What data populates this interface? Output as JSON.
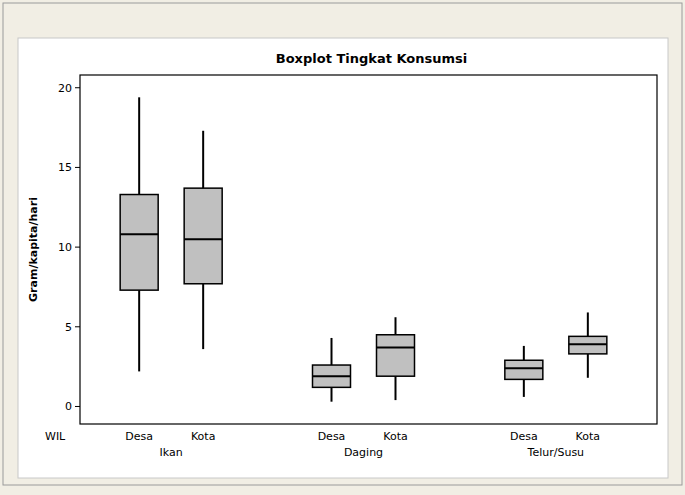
{
  "chart_data": {
    "type": "box",
    "title": "Boxplot Tingkat Konsumsi",
    "y_label": "Gram/kapita/hari",
    "x_label": "WIL",
    "ylim": [
      -1.1,
      20.8
    ],
    "yticks": [
      0,
      5,
      10,
      15,
      20
    ],
    "color": "#c0c0c0",
    "groups": [
      {
        "label": "Ikan",
        "categories": [
          "Desa",
          "Kota"
        ],
        "min": [
          2.2,
          3.6
        ],
        "q1": [
          7.3,
          7.7
        ],
        "median": [
          10.8,
          10.5
        ],
        "q3": [
          13.3,
          13.7
        ],
        "max": [
          19.4,
          17.3
        ]
      },
      {
        "label": "Daging",
        "categories": [
          "Desa",
          "Kota"
        ],
        "min": [
          0.3,
          0.4
        ],
        "q1": [
          1.2,
          1.9
        ],
        "median": [
          1.9,
          3.7
        ],
        "q3": [
          2.6,
          4.5
        ],
        "max": [
          4.3,
          5.6
        ]
      },
      {
        "label": "Telur/Susu",
        "categories": [
          "Desa",
          "Kota"
        ],
        "min": [
          0.6,
          1.8
        ],
        "q1": [
          1.7,
          3.3
        ],
        "median": [
          2.4,
          3.9
        ],
        "q3": [
          2.9,
          4.4
        ],
        "max": [
          3.8,
          5.9
        ]
      }
    ]
  }
}
